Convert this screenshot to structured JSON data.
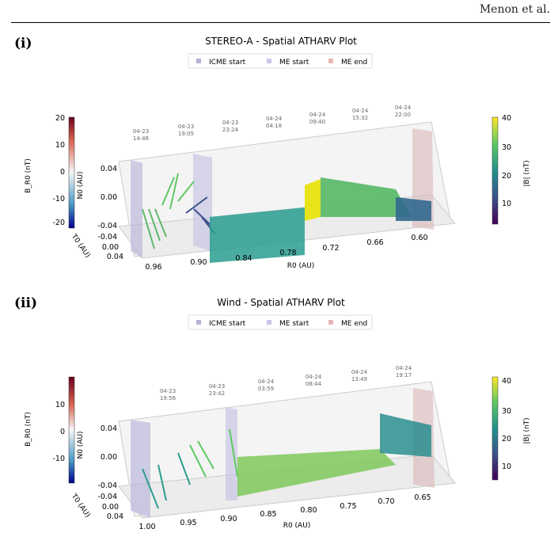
{
  "header": {
    "author": "Menon et al."
  },
  "panels": [
    {
      "label": "(i)",
      "title": "STEREO-A - Spatial ATHARV Plot",
      "legend": [
        "ICME start",
        "ME start",
        "ME end"
      ],
      "timestamps": [
        {
          "date": "04-23",
          "time": "14:46"
        },
        {
          "date": "04-23",
          "time": "19:05"
        },
        {
          "date": "04-23",
          "time": "23:24"
        },
        {
          "date": "04-24",
          "time": "04:18"
        },
        {
          "date": "04-24",
          "time": "09:40"
        },
        {
          "date": "04-24",
          "time": "15:32"
        },
        {
          "date": "04-24",
          "time": "22:00"
        }
      ],
      "left_colorbar": {
        "label": "B_R0 (nT)",
        "ticks": [
          "20",
          "10",
          "0",
          "-10",
          "-20"
        ]
      },
      "right_colorbar": {
        "label": "|B| (nT)",
        "ticks": [
          "40",
          "30",
          "20",
          "10"
        ]
      },
      "n_axis": {
        "label": "N0 (AU)",
        "ticks": [
          "0.04",
          "0.00",
          "-0.04"
        ]
      },
      "t_axis": {
        "label": "T0 (AU)",
        "ticks": [
          "-0.04",
          "0.00",
          "0.04"
        ]
      },
      "r_axis": {
        "label": "R0 (AU)",
        "ticks": [
          "0.96",
          "0.90",
          "0.84",
          "0.78",
          "0.72",
          "0.66",
          "0.60"
        ]
      }
    },
    {
      "label": "(ii)",
      "title": "Wind - Spatial ATHARV Plot",
      "legend": [
        "ICME start",
        "ME start",
        "ME end"
      ],
      "timestamps": [
        {
          "date": "04-23",
          "time": "19:56"
        },
        {
          "date": "04-23",
          "time": "23:42"
        },
        {
          "date": "04-24",
          "time": "03:59"
        },
        {
          "date": "04-24",
          "time": "08:44"
        },
        {
          "date": "04-24",
          "time": "13:49"
        },
        {
          "date": "04-24",
          "time": "19:17"
        }
      ],
      "left_colorbar": {
        "label": "B_R0 (nT)",
        "ticks": [
          "10",
          "0",
          "-10"
        ]
      },
      "right_colorbar": {
        "label": "|B| (nT)",
        "ticks": [
          "40",
          "30",
          "20",
          "10"
        ]
      },
      "n_axis": {
        "label": "N0 (AU)",
        "ticks": [
          "0.04",
          "0.00",
          "-0.04"
        ]
      },
      "t_axis": {
        "label": "T0 (AU)",
        "ticks": [
          "-0.04",
          "0.00",
          "0.04"
        ]
      },
      "r_axis": {
        "label": "R0 (AU)",
        "ticks": [
          "1.00",
          "0.95",
          "0.90",
          "0.85",
          "0.80",
          "0.75",
          "0.70",
          "0.65"
        ]
      }
    }
  ]
}
